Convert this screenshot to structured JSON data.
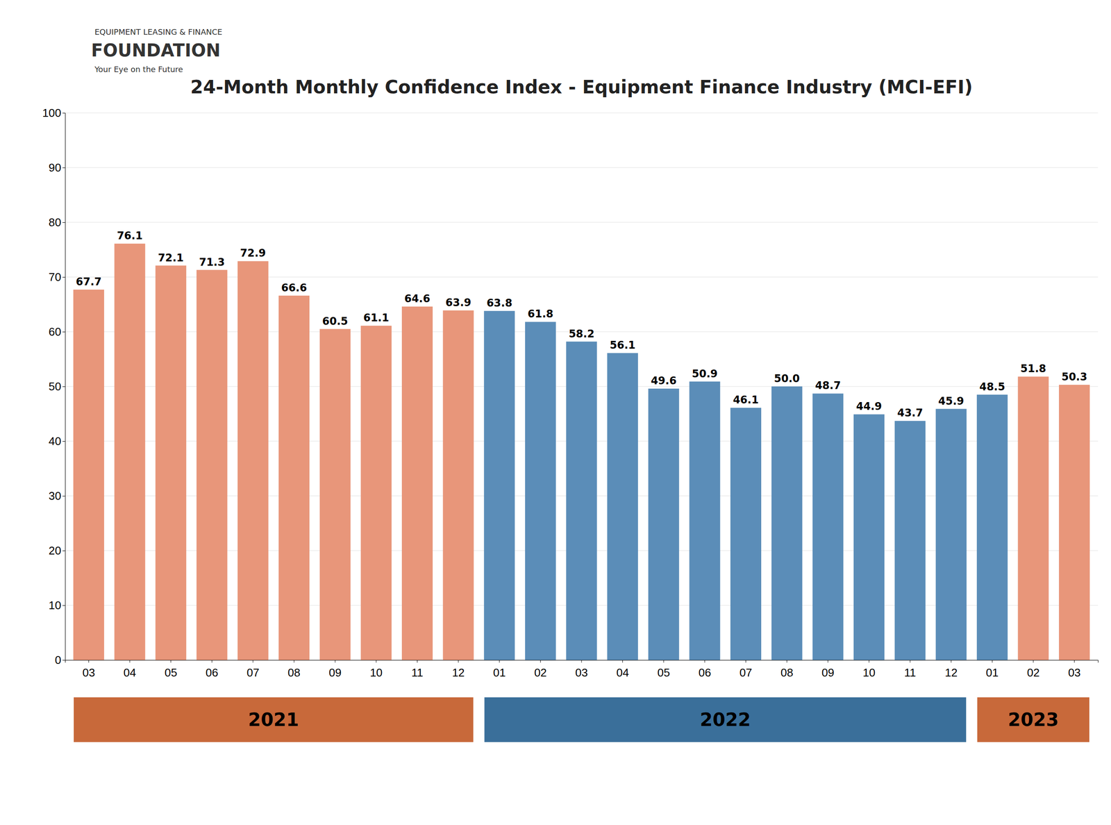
{
  "chart_data": {
    "type": "bar",
    "title": "24-Month Monthly Confidence Index - Equipment Finance Industry (MCI-EFI)",
    "categories": [
      "03",
      "04",
      "05",
      "06",
      "07",
      "08",
      "09",
      "10",
      "11",
      "12",
      "01",
      "02",
      "03",
      "04",
      "05",
      "06",
      "07",
      "08",
      "09",
      "10",
      "11",
      "12",
      "01",
      "02",
      "03"
    ],
    "values": [
      67.7,
      76.1,
      72.1,
      71.3,
      72.9,
      66.6,
      60.5,
      61.1,
      64.6,
      63.9,
      63.8,
      61.8,
      58.2,
      56.1,
      49.6,
      50.9,
      46.1,
      50.0,
      48.7,
      44.9,
      43.7,
      45.9,
      48.5,
      51.8,
      50.3
    ],
    "value_labels": [
      "67.7",
      "76.1",
      "72.1",
      "71.3",
      "72.9",
      "66.6",
      "60.5",
      "61.1",
      "64.6",
      "63.9",
      "63.8",
      "61.8",
      "58.2",
      "56.1",
      "49.6",
      "50.9",
      "46.1",
      "50.0",
      "48.7",
      "44.9",
      "43.7",
      "45.9",
      "48.5",
      "51.8",
      "50.3"
    ],
    "colors": [
      "#E8967A",
      "#E8967A",
      "#E8967A",
      "#E8967A",
      "#E8967A",
      "#E8967A",
      "#E8967A",
      "#E8967A",
      "#E8967A",
      "#E8967A",
      "#5B8DB8",
      "#5B8DB8",
      "#5B8DB8",
      "#5B8DB8",
      "#5B8DB8",
      "#5B8DB8",
      "#5B8DB8",
      "#5B8DB8",
      "#5B8DB8",
      "#5B8DB8",
      "#5B8DB8",
      "#5B8DB8",
      "#5B8DB8",
      "#E8967A",
      "#E8967A"
    ],
    "ylim": [
      0,
      100
    ],
    "yticks": [
      0,
      10,
      20,
      30,
      40,
      50,
      60,
      70,
      80,
      90,
      100
    ],
    "grid": true,
    "data_labels": true,
    "annotations": [
      {
        "text": "2021",
        "start": 0,
        "end": 9,
        "color": "#C8693A"
      },
      {
        "text": "2022",
        "start": 10,
        "end": 21,
        "color": "#3A6F9A"
      },
      {
        "text": "2023",
        "start": 22,
        "end": 24,
        "color": "#C8693A"
      },
      {
        "text": "EQUIPMENT LEASING & FINANCE"
      },
      {
        "text": "FOUNDATION"
      },
      {
        "text": "Your Eye on the Future"
      }
    ]
  }
}
